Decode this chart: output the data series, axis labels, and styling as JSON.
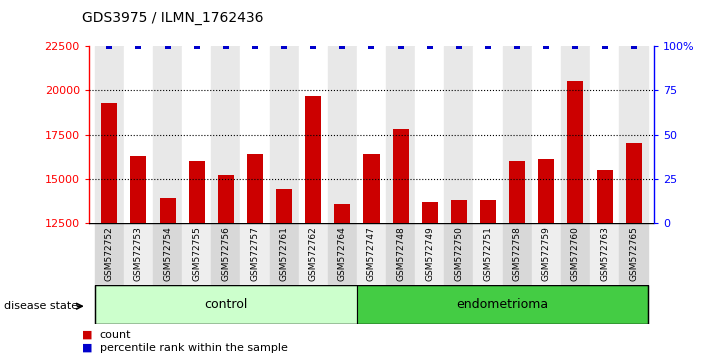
{
  "title": "GDS3975 / ILMN_1762436",
  "samples": [
    "GSM572752",
    "GSM572753",
    "GSM572754",
    "GSM572755",
    "GSM572756",
    "GSM572757",
    "GSM572761",
    "GSM572762",
    "GSM572764",
    "GSM572747",
    "GSM572748",
    "GSM572749",
    "GSM572750",
    "GSM572751",
    "GSM572758",
    "GSM572759",
    "GSM572760",
    "GSM572763",
    "GSM572765"
  ],
  "counts": [
    19300,
    16300,
    13900,
    16000,
    15200,
    16400,
    14400,
    19700,
    13600,
    16400,
    17800,
    13700,
    13800,
    13800,
    16000,
    16100,
    20500,
    15500,
    17000
  ],
  "percentiles": [
    100,
    100,
    100,
    100,
    100,
    100,
    100,
    100,
    100,
    100,
    100,
    100,
    100,
    100,
    100,
    100,
    100,
    100,
    100
  ],
  "groups": [
    "control",
    "control",
    "control",
    "control",
    "control",
    "control",
    "control",
    "control",
    "control",
    "endometrioma",
    "endometrioma",
    "endometrioma",
    "endometrioma",
    "endometrioma",
    "endometrioma",
    "endometrioma",
    "endometrioma",
    "endometrioma",
    "endometrioma"
  ],
  "ylim_left": [
    12500,
    22500
  ],
  "ylim_right": [
    0,
    100
  ],
  "yticks_left": [
    12500,
    15000,
    17500,
    20000,
    22500
  ],
  "yticks_right": [
    0,
    25,
    50,
    75,
    100
  ],
  "bar_color": "#cc0000",
  "dot_color": "#0000cc",
  "control_color": "#ccffcc",
  "endo_color": "#44cc44",
  "plot_bg": "#e8e8e8",
  "col_bg_even": "#e8e8e8",
  "col_bg_odd": "#ffffff",
  "n_control": 9,
  "n_endo": 10,
  "disease_label": "disease state",
  "legend_count": "count",
  "legend_percentile": "percentile rank within the sample",
  "hgrid_color": "#000000",
  "hgrid_style": ":",
  "hgrid_vals": [
    15000,
    17500,
    20000
  ]
}
